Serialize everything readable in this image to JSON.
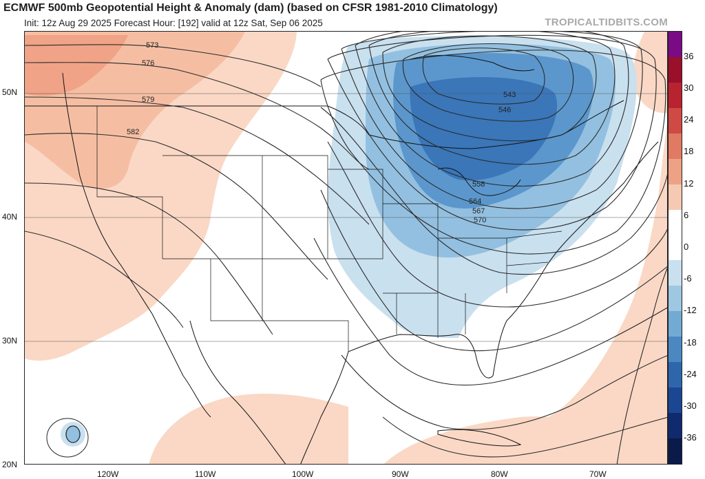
{
  "title": "ECMWF 500mb Geopotential Height & Anomaly (dam) (based on CFSR 1981-2010 Climatology)",
  "subtitle": "Init: 12z Aug 29 2025   Forecast Hour: [192]   valid at 12z Sat, Sep 06 2025",
  "credit": "TROPICALTIDBITS.COM",
  "latitude_labels": [
    "50N",
    "40N",
    "30N",
    "20N"
  ],
  "longitude_labels": [
    "120W",
    "110W",
    "100W",
    "90W",
    "80W",
    "70W"
  ],
  "contour_labels": [
    "573",
    "576",
    "579",
    "582",
    "543",
    "546",
    "558",
    "564",
    "567",
    "570"
  ],
  "colorbar": {
    "labels": [
      "36",
      "30",
      "24",
      "18",
      "12",
      "6",
      "0",
      "-6",
      "-12",
      "-18",
      "-24",
      "-30",
      "-36"
    ],
    "colors": [
      "#7b0a86",
      "#9a0f2a",
      "#b8232f",
      "#cf4a44",
      "#e07a62",
      "#eea285",
      "#f6c9b2",
      "#ffffff",
      "#ffffff",
      "#c9e0ef",
      "#9ec8e2",
      "#73aad3",
      "#4b88c2",
      "#2e66ac",
      "#1b4691",
      "#102a6e",
      "#0a1a4a"
    ]
  },
  "colors": {
    "positive_light": "#fad8c5",
    "positive_mid": "#f5bea3",
    "positive_strong": "#f0a386",
    "negative_light": "#c9e0ef",
    "negative_mid": "#93c0e0",
    "negative_strong": "#5b97cc",
    "negative_deep": "#3a76b8"
  }
}
